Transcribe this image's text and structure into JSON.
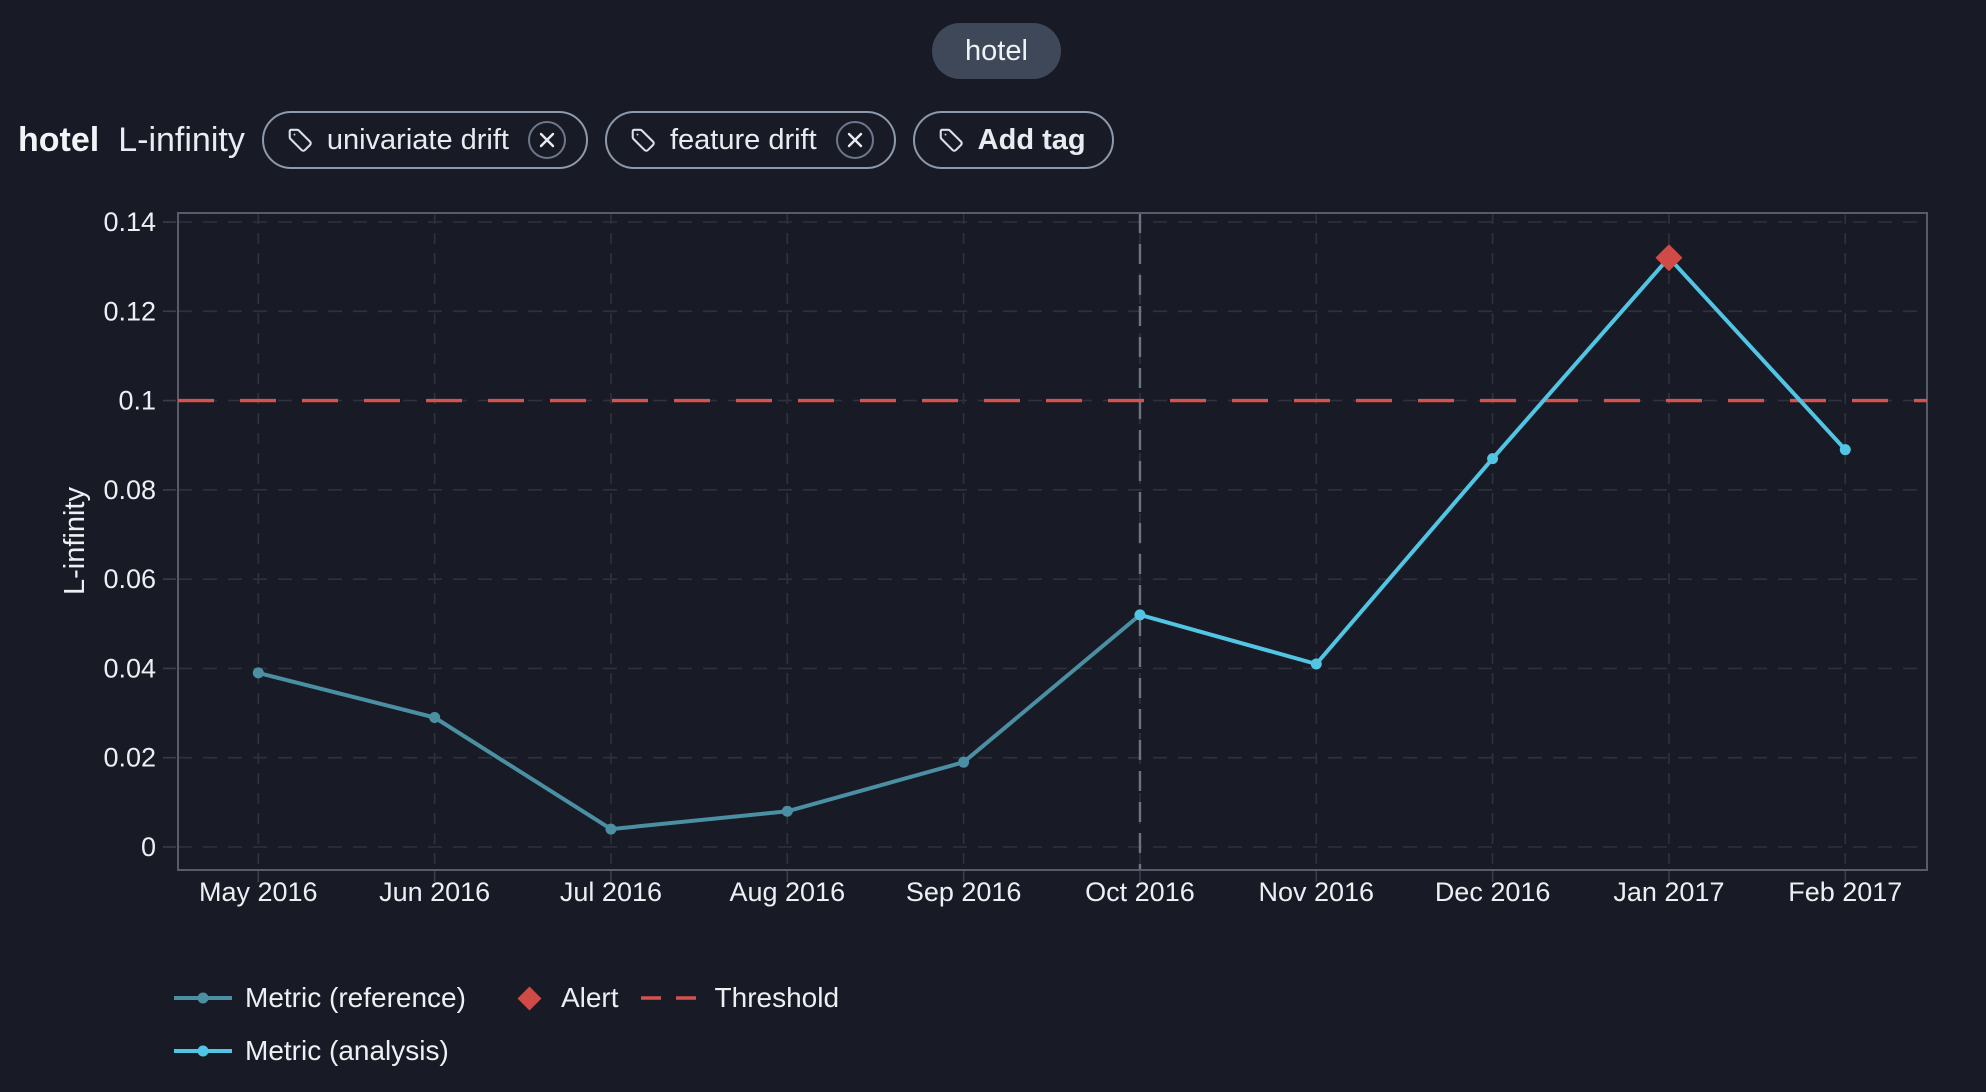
{
  "page": {
    "background": "#181B25"
  },
  "top_chip": {
    "label": "hotel",
    "bg": "#3E4859"
  },
  "header": {
    "model_name": "hotel",
    "metric_name": "L-infinity",
    "tags": [
      {
        "label": "univariate drift",
        "removable": true
      },
      {
        "label": "feature drift",
        "removable": true
      }
    ],
    "add_tag_label": "Add tag"
  },
  "chart_data": {
    "type": "line",
    "ylabel": "L-infinity",
    "ylim": [
      0,
      0.14
    ],
    "grid": true,
    "legend_position": "bottom-left",
    "x_categories": [
      "May 2016",
      "Jun 2016",
      "Jul 2016",
      "Aug 2016",
      "Sep 2016",
      "Oct 2016",
      "Nov 2016",
      "Dec 2016",
      "Jan 2017",
      "Feb 2017"
    ],
    "yticks": [
      {
        "label": "0",
        "value": 0
      },
      {
        "label": "0.02",
        "value": 0.02
      },
      {
        "label": "0.04",
        "value": 0.04
      },
      {
        "label": "0.06",
        "value": 0.06
      },
      {
        "label": "0.08",
        "value": 0.08
      },
      {
        "label": "0.1",
        "value": 0.1
      },
      {
        "label": "0.12",
        "value": 0.12
      },
      {
        "label": "0.14",
        "value": 0.14
      }
    ],
    "series": [
      {
        "name": "Metric (reference)",
        "period": "reference",
        "color": "#4B8FA3"
      },
      {
        "name": "Metric (analysis)",
        "period": "analysis",
        "color": "#52C5E4"
      }
    ],
    "points": [
      {
        "x": "May 2016",
        "value": 0.039,
        "period": "reference",
        "alert": false
      },
      {
        "x": "Jun 2016",
        "value": 0.029,
        "period": "reference",
        "alert": false
      },
      {
        "x": "Jul 2016",
        "value": 0.004,
        "period": "reference",
        "alert": false
      },
      {
        "x": "Aug 2016",
        "value": 0.008,
        "period": "reference",
        "alert": false
      },
      {
        "x": "Sep 2016",
        "value": 0.019,
        "period": "reference",
        "alert": false
      },
      {
        "x": "Oct 2016",
        "value": 0.052,
        "period": "analysis",
        "alert": false
      },
      {
        "x": "Nov 2016",
        "value": 0.041,
        "period": "analysis",
        "alert": false
      },
      {
        "x": "Dec 2016",
        "value": 0.087,
        "period": "analysis",
        "alert": false
      },
      {
        "x": "Jan 2017",
        "value": 0.132,
        "period": "analysis",
        "alert": true
      },
      {
        "x": "Feb 2017",
        "value": 0.089,
        "period": "analysis",
        "alert": false
      }
    ],
    "analysis_start_x": "Oct 2016",
    "threshold": {
      "label": "Threshold",
      "value": 0.1,
      "color": "#D4534E"
    },
    "alert": {
      "label": "Alert",
      "color": "#D14B46"
    }
  }
}
